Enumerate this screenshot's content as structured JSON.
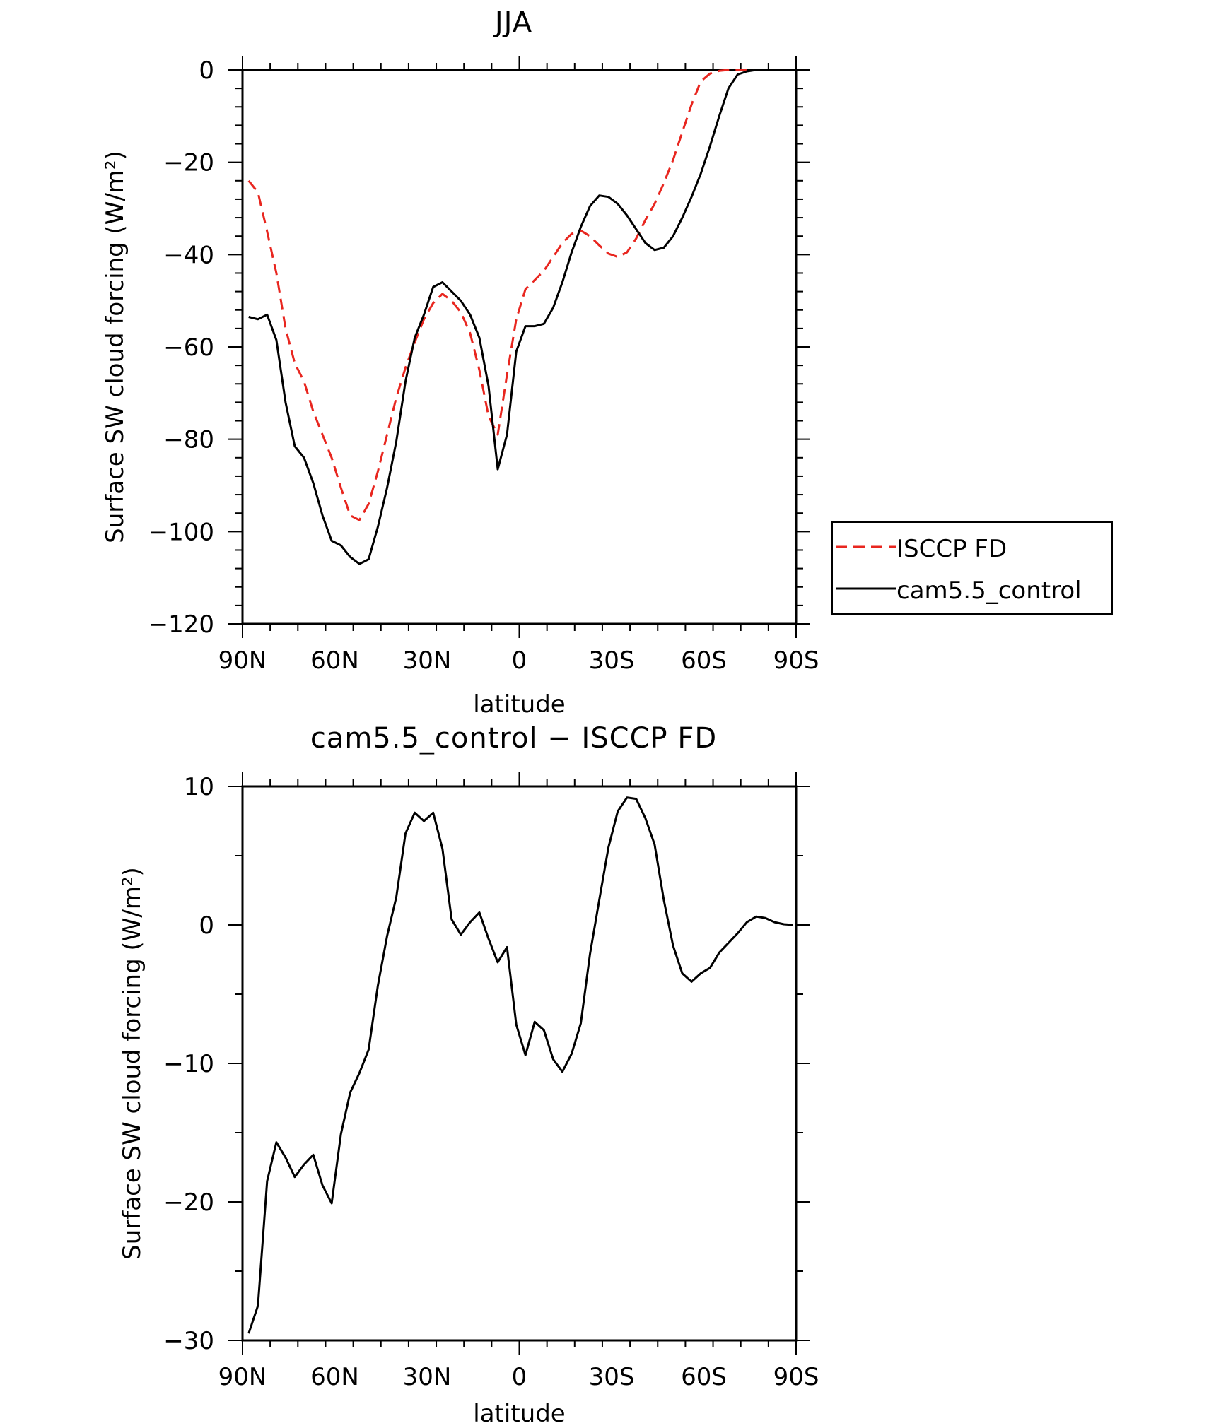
{
  "chart_data": [
    {
      "type": "line",
      "title": "JJA",
      "xlabel": "latitude",
      "ylabel": "Surface SW cloud forcing (W/m²)",
      "xlim": [
        -90,
        90
      ],
      "ylim": [
        -120,
        0
      ],
      "x_ticks": [
        -90,
        -60,
        -30,
        0,
        30,
        60,
        90
      ],
      "x_tick_labels": [
        "90N",
        "60N",
        "30N",
        "0",
        "30S",
        "60S",
        "90S"
      ],
      "y_ticks": [
        0,
        -20,
        -40,
        -60,
        -80,
        -100,
        -120
      ],
      "y_tick_labels": [
        "0",
        "−20",
        "−40",
        "−60",
        "−80",
        "−100",
        "−120"
      ],
      "grid": false,
      "legend_position": "right",
      "series": [
        {
          "name": "ISCCP FD",
          "color": "#e8261f",
          "dash": "dashed",
          "x": [
            -88,
            -85,
            -82,
            -79,
            -76,
            -73,
            -70,
            -67,
            -64,
            -61,
            -58,
            -55,
            -52,
            -49,
            -46,
            -43,
            -40,
            -37,
            -34,
            -31,
            -28,
            -25,
            -22,
            -19,
            -16,
            -13,
            -10,
            -7,
            -4,
            -1,
            2,
            5,
            8,
            11,
            14,
            17,
            20,
            23,
            26,
            29,
            32,
            35,
            38,
            41,
            44,
            47,
            50,
            53,
            56,
            59,
            62,
            65,
            68,
            71,
            74,
            77,
            80,
            83,
            86,
            89
          ],
          "values": [
            -24,
            -26.5,
            -35,
            -44,
            -56,
            -63.5,
            -67.5,
            -74,
            -79,
            -84,
            -90.5,
            -96.5,
            -97.5,
            -94,
            -87,
            -79,
            -71,
            -64.5,
            -59,
            -54,
            -50.5,
            -48.5,
            -50,
            -52.5,
            -57,
            -65,
            -75,
            -79,
            -66,
            -54,
            -47.5,
            -45.5,
            -43.5,
            -40.5,
            -37.5,
            -35.5,
            -34.8,
            -36,
            -38,
            -39.8,
            -40.5,
            -39.5,
            -36.5,
            -32.5,
            -29,
            -24.5,
            -19.5,
            -13.5,
            -7.5,
            -2.5,
            -0.8,
            -0.2,
            0,
            0,
            0,
            0,
            0,
            0,
            0,
            0
          ]
        },
        {
          "name": "cam5.5_control",
          "color": "#000000",
          "dash": "solid",
          "x": [
            -88,
            -85,
            -82,
            -79,
            -76,
            -73,
            -70,
            -67,
            -64,
            -61,
            -58,
            -55,
            -52,
            -49,
            -46,
            -43,
            -40,
            -37,
            -34,
            -31,
            -28,
            -25,
            -22,
            -19,
            -16,
            -13,
            -10,
            -7,
            -4,
            -1,
            2,
            5,
            8,
            11,
            14,
            17,
            20,
            23,
            26,
            29,
            32,
            35,
            38,
            41,
            44,
            47,
            50,
            53,
            56,
            59,
            62,
            65,
            68,
            71,
            74,
            77,
            80,
            83,
            86,
            89
          ],
          "values": [
            -53.5,
            -54,
            -53,
            -58.5,
            -72,
            -81.5,
            -84,
            -89.5,
            -96.5,
            -102,
            -103,
            -105.5,
            -107,
            -106,
            -99,
            -90.5,
            -80.5,
            -67.5,
            -58,
            -53,
            -47,
            -46,
            -48,
            -50,
            -53,
            -58,
            -68.5,
            -86.5,
            -79,
            -61,
            -55.5,
            -55.5,
            -55,
            -51.5,
            -46,
            -39.5,
            -34,
            -29.5,
            -27.2,
            -27.5,
            -29,
            -31.5,
            -34.5,
            -37.5,
            -39,
            -38.5,
            -36,
            -32,
            -27.5,
            -22.5,
            -16.5,
            -10,
            -4,
            -1,
            -0.3,
            0,
            0,
            0,
            0,
            0
          ]
        }
      ]
    },
    {
      "type": "line",
      "title": "cam5.5_control − ISCCP FD",
      "xlabel": "latitude",
      "ylabel": "Surface SW cloud forcing (W/m²)",
      "xlim": [
        -90,
        90
      ],
      "ylim": [
        -30,
        10
      ],
      "x_ticks": [
        -90,
        -60,
        -30,
        0,
        30,
        60,
        90
      ],
      "x_tick_labels": [
        "90N",
        "60N",
        "30N",
        "0",
        "30S",
        "60S",
        "90S"
      ],
      "y_ticks": [
        10,
        0,
        -10,
        -20,
        -30
      ],
      "y_tick_labels": [
        "10",
        "0",
        "−10",
        "−20",
        "−30"
      ],
      "grid": false,
      "series": [
        {
          "color": "#000000",
          "dash": "solid",
          "x": [
            -88,
            -85,
            -82,
            -79,
            -76,
            -73,
            -70,
            -67,
            -64,
            -61,
            -58,
            -55,
            -52,
            -49,
            -46,
            -43,
            -40,
            -37,
            -34,
            -31,
            -28,
            -25,
            -22,
            -19,
            -16,
            -13,
            -10,
            -7,
            -4,
            -1,
            2,
            5,
            8,
            11,
            14,
            17,
            20,
            23,
            26,
            29,
            32,
            35,
            38,
            41,
            44,
            47,
            50,
            53,
            56,
            59,
            62,
            65,
            68,
            71,
            74,
            77,
            80,
            83,
            86,
            89
          ],
          "values": [
            -29.5,
            -27.5,
            -18.5,
            -15.7,
            -16.8,
            -18.2,
            -17.3,
            -16.6,
            -18.8,
            -20.1,
            -15.1,
            -12.1,
            -10.7,
            -9,
            -4.4,
            -0.8,
            2,
            6.6,
            8.1,
            7.5,
            8.1,
            5.5,
            0.4,
            -0.7,
            0.2,
            0.9,
            -1,
            -2.7,
            -1.6,
            -7.2,
            -9.4,
            -7,
            -7.6,
            -9.7,
            -10.6,
            -9.3,
            -7.1,
            -2.1,
            1.8,
            5.6,
            8.2,
            9.2,
            9.1,
            7.7,
            5.8,
            1.8,
            -1.5,
            -3.5,
            -4.1,
            -3.5,
            -3.1,
            -2,
            -1.3,
            -0.6,
            0.2,
            0.6,
            0.5,
            0.2,
            0.05,
            0
          ]
        }
      ]
    }
  ]
}
